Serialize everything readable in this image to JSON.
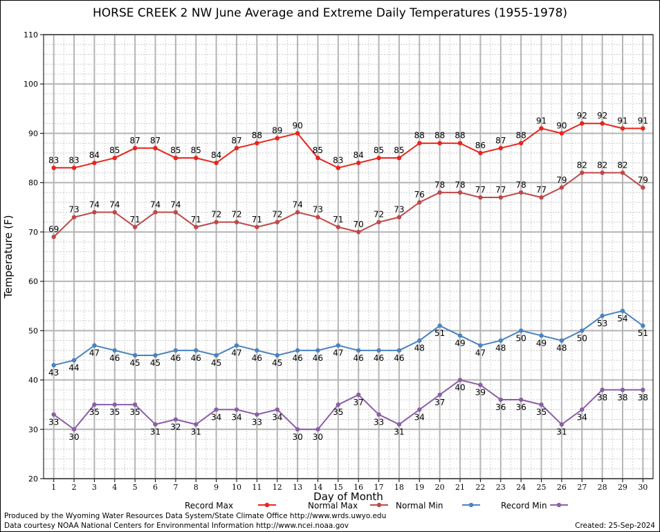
{
  "title": "HORSE CREEK 2 NW June Average and Extreme Daily Temperatures (1955-1978)",
  "footer": {
    "credit_line1": "Produced by the Wyoming Water Resources Data System/State Climate Office http://www.wrds.uwyo.edu",
    "credit_line2": "Data courtesy NOAA National Centers for Environmental Information http://www.ncei.noaa.gov",
    "created": "Created:  25-Sep-2024"
  },
  "chart_data": {
    "type": "line",
    "title": "HORSE CREEK 2 NW June Average and Extreme Daily Temperatures (1955-1978)",
    "xlabel": "Day of Month",
    "ylabel": "Temperature (F)",
    "x": [
      1,
      2,
      3,
      4,
      5,
      6,
      7,
      8,
      9,
      10,
      11,
      12,
      13,
      14,
      15,
      16,
      17,
      18,
      19,
      20,
      21,
      22,
      23,
      24,
      25,
      26,
      27,
      28,
      29,
      30
    ],
    "ylim": [
      20,
      110
    ],
    "yticks": [
      20,
      30,
      40,
      50,
      60,
      70,
      80,
      90,
      100,
      110
    ],
    "grid": true,
    "legend_position": "bottom",
    "series": [
      {
        "name": "Record Max",
        "color": "#e8241c",
        "values": [
          83,
          83,
          84,
          85,
          87,
          87,
          85,
          85,
          84,
          87,
          88,
          89,
          90,
          85,
          83,
          84,
          85,
          85,
          88,
          88,
          88,
          86,
          87,
          88,
          91,
          90,
          92,
          92,
          91,
          91
        ],
        "label_pos": [
          1,
          1,
          1,
          1,
          1,
          1,
          1,
          1,
          1,
          1,
          1,
          1,
          1,
          1,
          1,
          1,
          1,
          1,
          1,
          1,
          1,
          1,
          1,
          1,
          1,
          1,
          1,
          1,
          1,
          1
        ]
      },
      {
        "name": "Normal Max",
        "color": "#bf4848",
        "values": [
          69,
          73,
          74,
          74,
          71,
          74,
          74,
          71,
          72,
          72,
          71,
          72,
          74,
          73,
          71,
          70,
          72,
          73,
          76,
          78,
          78,
          77,
          77,
          78,
          77,
          79,
          82,
          82,
          82,
          79
        ],
        "label_pos": [
          1,
          1,
          1,
          1,
          1,
          1,
          1,
          1,
          1,
          1,
          1,
          1,
          1,
          1,
          1,
          1,
          1,
          1,
          1,
          1,
          1,
          1,
          1,
          1,
          1,
          1,
          1,
          1,
          1,
          1
        ]
      },
      {
        "name": "Normal Min",
        "color": "#4a82bf",
        "values": [
          43,
          44,
          47,
          46,
          45,
          45,
          46,
          46,
          45,
          47,
          46,
          45,
          46,
          46,
          47,
          46,
          46,
          46,
          48,
          51,
          49,
          47,
          48,
          50,
          49,
          48,
          50,
          53,
          54,
          51
        ],
        "label_pos": [
          -1,
          -1,
          -1,
          -1,
          -1,
          -1,
          -1,
          -1,
          -1,
          -1,
          -1,
          -1,
          -1,
          -1,
          -1,
          -1,
          -1,
          -1,
          -1,
          -1,
          -1,
          -1,
          -1,
          -1,
          -1,
          -1,
          -1,
          -1,
          -1,
          -1
        ]
      },
      {
        "name": "Record Min",
        "color": "#8a5ea6",
        "values": [
          33,
          30,
          35,
          35,
          35,
          31,
          32,
          31,
          34,
          34,
          33,
          34,
          30,
          30,
          35,
          37,
          33,
          31,
          34,
          37,
          40,
          39,
          36,
          36,
          35,
          31,
          34,
          38,
          38,
          38
        ],
        "label_pos": [
          -1,
          -1,
          -1,
          -1,
          -1,
          -1,
          -1,
          -1,
          -1,
          -1,
          -1,
          -1,
          -1,
          -1,
          -1,
          -1,
          -1,
          -1,
          -1,
          -1,
          -1,
          -1,
          -1,
          -1,
          -1,
          -1,
          -1,
          -1,
          -1,
          -1
        ]
      }
    ]
  }
}
